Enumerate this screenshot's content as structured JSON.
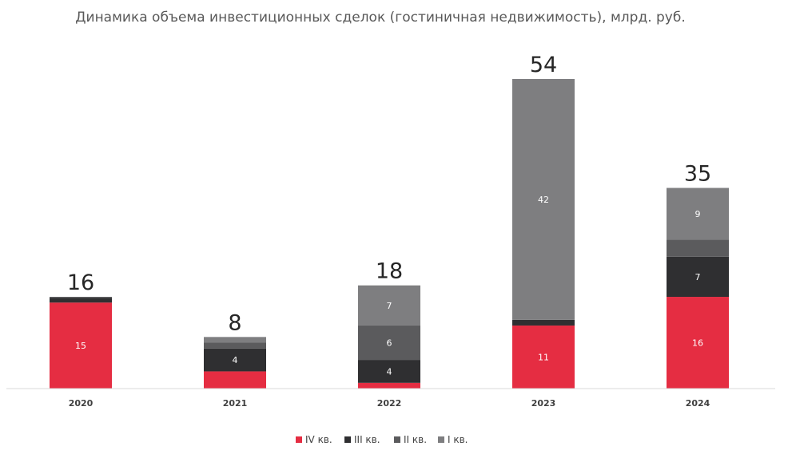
{
  "chart_data": {
    "type": "bar",
    "stacked": true,
    "title": "Динамика объема инвестиционных сделок (гостиничная недвижимость), млрд. руб.",
    "categories": [
      "2020",
      "2021",
      "2022",
      "2023",
      "2024"
    ],
    "totals": [
      "16",
      "8",
      "18",
      "54",
      "35"
    ],
    "ylim": [
      0,
      54
    ],
    "grid": false,
    "legend_position": "bottom",
    "series": [
      {
        "name": "IV кв.",
        "color": "#E52D42",
        "values": [
          15,
          3,
          1,
          11,
          16
        ],
        "labels": [
          "15",
          "",
          "",
          "11",
          "16"
        ]
      },
      {
        "name": "III кв.",
        "color": "#2F2F31",
        "values": [
          0.8,
          4,
          4,
          1,
          7
        ],
        "labels": [
          "",
          "4",
          "4",
          "",
          "7"
        ]
      },
      {
        "name": "II кв.",
        "color": "#5B5B5D",
        "values": [
          0.2,
          1,
          6,
          0,
          3
        ],
        "labels": [
          "",
          "",
          "6",
          "",
          ""
        ]
      },
      {
        "name": "I кв.",
        "color": "#7E7E80",
        "values": [
          0,
          1,
          7,
          42,
          9
        ],
        "labels": [
          "",
          "",
          "7",
          "42",
          "9"
        ]
      }
    ]
  }
}
